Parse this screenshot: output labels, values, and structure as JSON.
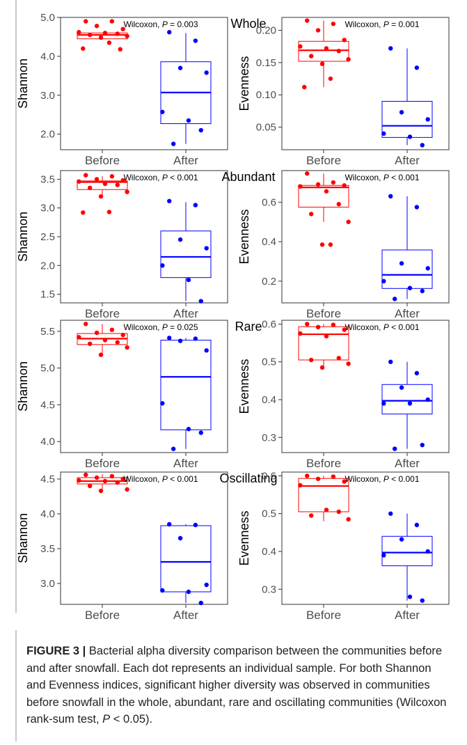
{
  "figure": {
    "colors": {
      "before": "#ff0000",
      "after": "#0000ff",
      "axis": "#333333",
      "label": "#4d4d4d"
    },
    "categories": [
      "Before",
      "After"
    ],
    "chart_data": [
      {
        "type": "boxplot",
        "group_title": "Whole",
        "ylabel": "Shannon",
        "ylim": [
          1.6,
          5.0
        ],
        "yticks": [
          "2.0",
          "3.0",
          "4.0",
          "5.0"
        ],
        "annotation_prefix": "Wilcoxon, ",
        "annotation_p": "P",
        "annotation_value": " = 0.003",
        "boxes": [
          {
            "category": "Before",
            "whisker_low": 4.45,
            "q1": 4.45,
            "median": 4.55,
            "q3": 4.6,
            "whisker_high": 4.6
          },
          {
            "category": "After",
            "whisker_low": 1.75,
            "q1": 2.27,
            "median": 3.07,
            "q3": 3.86,
            "whisker_high": 4.6
          }
        ],
        "points": [
          {
            "category": "Before",
            "values": [
              4.9,
              4.9,
              4.78,
              4.7,
              4.62,
              4.6,
              4.58,
              4.55,
              4.52,
              4.48,
              4.35,
              4.2,
              4.18
            ]
          },
          {
            "category": "After",
            "values": [
              4.62,
              4.4,
              3.7,
              3.58,
              2.57,
              2.35,
              2.1,
              1.75
            ]
          }
        ]
      },
      {
        "type": "boxplot",
        "group_title": "Whole",
        "ylabel": "Evenness",
        "ylim": [
          0.015,
          0.22
        ],
        "yticks": [
          "0.05",
          "0.10",
          "0.15",
          "0.20"
        ],
        "annotation_prefix": "Wilcoxon, ",
        "annotation_p": "P",
        "annotation_value": " = 0.001",
        "boxes": [
          {
            "category": "Before",
            "whisker_low": 0.112,
            "q1": 0.152,
            "median": 0.169,
            "q3": 0.183,
            "whisker_high": 0.215
          },
          {
            "category": "After",
            "whisker_low": 0.022,
            "q1": 0.034,
            "median": 0.052,
            "q3": 0.09,
            "whisker_high": 0.172
          }
        ],
        "points": [
          {
            "category": "Before",
            "values": [
              0.215,
              0.21,
              0.2,
              0.185,
              0.175,
              0.172,
              0.168,
              0.16,
              0.155,
              0.148,
              0.125,
              0.112
            ]
          },
          {
            "category": "After",
            "values": [
              0.172,
              0.142,
              0.073,
              0.062,
              0.04,
              0.035,
              0.022
            ]
          }
        ]
      },
      {
        "type": "boxplot",
        "group_title": "Abundant",
        "ylabel": "Shannon",
        "ylim": [
          1.35,
          3.65
        ],
        "yticks": [
          "1.5",
          "2.0",
          "2.5",
          "3.0",
          "3.5"
        ],
        "annotation_prefix": "Wilcoxon, ",
        "annotation_p": "P",
        "annotation_value": " < 0.001",
        "boxes": [
          {
            "category": "Before",
            "whisker_low": 3.18,
            "q1": 3.32,
            "median": 3.45,
            "q3": 3.47,
            "whisker_high": 3.55
          },
          {
            "category": "After",
            "whisker_low": 1.38,
            "q1": 1.79,
            "median": 2.15,
            "q3": 2.6,
            "whisker_high": 3.1
          }
        ],
        "points": [
          {
            "category": "Before",
            "values": [
              3.57,
              3.55,
              3.5,
              3.48,
              3.46,
              3.42,
              3.4,
              3.35,
              3.28,
              3.2,
              2.93,
              2.92
            ]
          },
          {
            "category": "After",
            "values": [
              3.12,
              3.05,
              2.45,
              2.3,
              2.0,
              1.75,
              1.38
            ]
          }
        ]
      },
      {
        "type": "boxplot",
        "group_title": "Abundant",
        "ylabel": "Evenness",
        "ylim": [
          0.09,
          0.76
        ],
        "yticks": [
          "0.2",
          "0.4",
          "0.6"
        ],
        "annotation_prefix": "Wilcoxon, ",
        "annotation_p": "P",
        "annotation_value": " < 0.001",
        "boxes": [
          {
            "category": "Before",
            "whisker_low": 0.5,
            "q1": 0.575,
            "median": 0.675,
            "q3": 0.685,
            "whisker_high": 0.745
          },
          {
            "category": "After",
            "whisker_low": 0.11,
            "q1": 0.163,
            "median": 0.232,
            "q3": 0.358,
            "whisker_high": 0.63
          }
        ],
        "points": [
          {
            "category": "Before",
            "values": [
              0.745,
              0.7,
              0.69,
              0.685,
              0.68,
              0.655,
              0.59,
              0.54,
              0.5,
              0.385,
              0.385
            ]
          },
          {
            "category": "After",
            "values": [
              0.63,
              0.575,
              0.29,
              0.265,
              0.2,
              0.165,
              0.15,
              0.11
            ]
          }
        ]
      },
      {
        "type": "boxplot",
        "group_title": "Rare",
        "ylabel": "Shannon",
        "ylim": [
          3.85,
          5.65
        ],
        "yticks": [
          "4.0",
          "4.5",
          "5.0",
          "5.5"
        ],
        "annotation_prefix": "Wilcoxon, ",
        "annotation_p": "P",
        "annotation_value": " = 0.025",
        "boxes": [
          {
            "category": "Before",
            "whisker_low": 5.18,
            "q1": 5.32,
            "median": 5.4,
            "q3": 5.47,
            "whisker_high": 5.6
          },
          {
            "category": "After",
            "whisker_low": 3.9,
            "q1": 4.16,
            "median": 4.88,
            "q3": 5.38,
            "whisker_high": 5.41
          }
        ],
        "points": [
          {
            "category": "Before",
            "values": [
              5.6,
              5.52,
              5.48,
              5.45,
              5.42,
              5.38,
              5.35,
              5.33,
              5.28,
              5.18
            ]
          },
          {
            "category": "After",
            "values": [
              5.41,
              5.4,
              5.37,
              5.24,
              4.52,
              4.17,
              4.12,
              3.9
            ]
          }
        ]
      },
      {
        "type": "boxplot",
        "group_title": "Rare",
        "ylabel": "Evenness",
        "ylim": [
          0.26,
          0.61
        ],
        "yticks": [
          "0.3",
          "0.4",
          "0.5",
          "0.6"
        ],
        "annotation_prefix": "Wilcoxon, ",
        "annotation_p": "P",
        "annotation_value": " < 0.001",
        "boxes": [
          {
            "category": "Before",
            "whisker_low": 0.48,
            "q1": 0.505,
            "median": 0.573,
            "q3": 0.593,
            "whisker_high": 0.6
          },
          {
            "category": "After",
            "whisker_low": 0.27,
            "q1": 0.362,
            "median": 0.397,
            "q3": 0.44,
            "whisker_high": 0.5
          }
        ],
        "points": [
          {
            "category": "Before",
            "values": [
              0.6,
              0.598,
              0.592,
              0.585,
              0.575,
              0.568,
              0.51,
              0.505,
              0.495,
              0.485
            ]
          },
          {
            "category": "After",
            "values": [
              0.5,
              0.47,
              0.432,
              0.4,
              0.39,
              0.39,
              0.28,
              0.27
            ]
          }
        ]
      },
      {
        "type": "boxplot",
        "group_title": "Oscillating",
        "ylabel": "Shannon",
        "ylim": [
          2.7,
          4.6
        ],
        "yticks": [
          "3.0",
          "3.5",
          "4.0",
          "4.5"
        ],
        "annotation_prefix": "Wilcoxon, ",
        "annotation_p": "P",
        "annotation_value": " < 0.001",
        "boxes": [
          {
            "category": "Before",
            "whisker_low": 4.35,
            "q1": 4.43,
            "median": 4.47,
            "q3": 4.52,
            "whisker_high": 4.57
          },
          {
            "category": "After",
            "whisker_low": 2.72,
            "q1": 2.88,
            "median": 3.31,
            "q3": 3.83,
            "whisker_high": 3.85
          }
        ],
        "points": [
          {
            "category": "Before",
            "values": [
              4.56,
              4.54,
              4.52,
              4.5,
              4.48,
              4.47,
              4.45,
              4.4,
              4.35,
              4.33
            ]
          },
          {
            "category": "After",
            "values": [
              3.85,
              3.84,
              3.65,
              2.98,
              2.9,
              2.88,
              2.72
            ]
          }
        ]
      },
      {
        "type": "boxplot",
        "group_title": "Oscillating",
        "ylabel": "Evenness",
        "ylim": [
          0.26,
          0.61
        ],
        "yticks": [
          "0.3",
          "0.4",
          "0.5",
          "0.6"
        ],
        "annotation_prefix": "Wilcoxon, ",
        "annotation_p": "P",
        "annotation_value": " < 0.001",
        "boxes": [
          {
            "category": "Before",
            "whisker_low": 0.48,
            "q1": 0.505,
            "median": 0.573,
            "q3": 0.593,
            "whisker_high": 0.6
          },
          {
            "category": "After",
            "whisker_low": 0.27,
            "q1": 0.362,
            "median": 0.397,
            "q3": 0.44,
            "whisker_high": 0.5
          }
        ],
        "points": [
          {
            "category": "Before",
            "values": [
              0.6,
              0.598,
              0.592,
              0.585,
              0.575,
              0.51,
              0.505,
              0.495,
              0.485
            ]
          },
          {
            "category": "After",
            "values": [
              0.5,
              0.47,
              0.432,
              0.4,
              0.39,
              0.28,
              0.27
            ]
          }
        ]
      }
    ]
  },
  "caption": {
    "label": "FIGURE 3 |",
    "text_1": " Bacterial alpha diversity comparison between the communities before and after snowfall. Each dot represents an individual sample. For both Shannon and Evenness indices, significant higher diversity was observed in communities before snowfall in the whole, abundant, rare and oscillating communities (Wilcoxon rank-sum test, ",
    "p_symbol": "P",
    "text_2": " < 0.05)."
  }
}
